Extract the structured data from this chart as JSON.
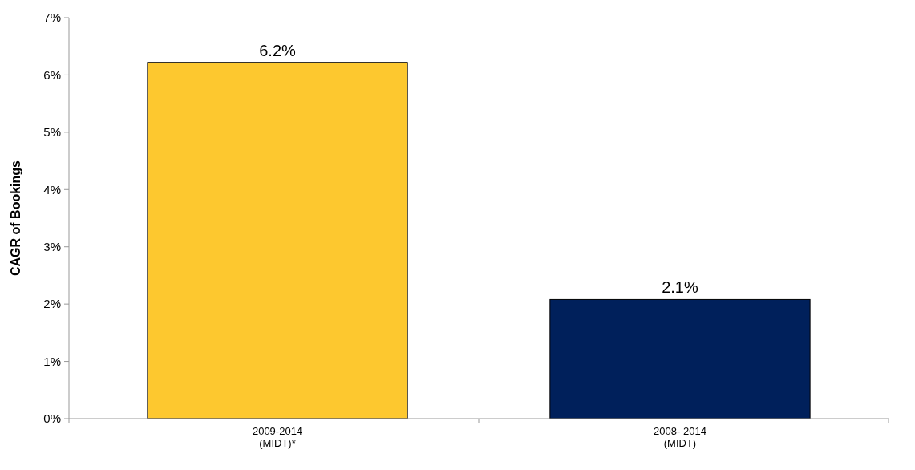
{
  "chart_data": {
    "type": "bar",
    "ylabel": "CAGR of Bookings",
    "categories": [
      "2009-2014\n(MIDT)*",
      "2008- 2014\n(MIDT)"
    ],
    "values": [
      6.22,
      2.08
    ],
    "colors": [
      "#fdc82f",
      "#00205b"
    ],
    "value_labels": [
      "6.2%",
      "2.1%"
    ],
    "ylim": [
      0,
      7
    ],
    "yticks": [
      {
        "value": 0,
        "label": "0%"
      },
      {
        "value": 1,
        "label": "1%"
      },
      {
        "value": 2,
        "label": "2%"
      },
      {
        "value": 3,
        "label": "3%"
      },
      {
        "value": 4,
        "label": "4%"
      },
      {
        "value": 5,
        "label": "5%"
      },
      {
        "value": 6,
        "label": "6%"
      },
      {
        "value": 7,
        "label": "7%"
      }
    ],
    "grid": false
  }
}
